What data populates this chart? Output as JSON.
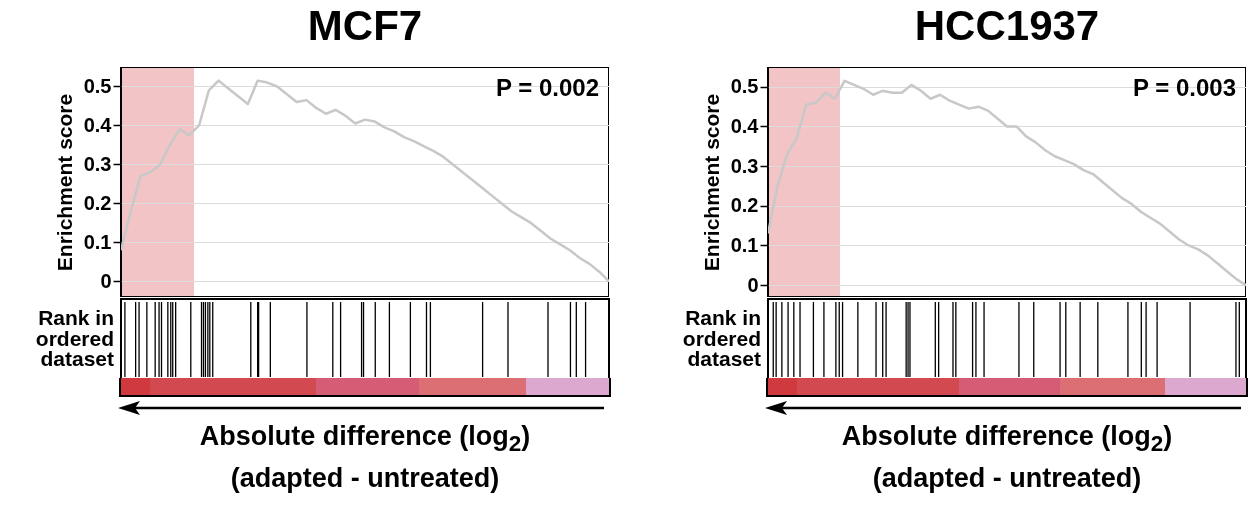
{
  "chart_data": [
    {
      "type": "line",
      "title": "MCF7",
      "ylabel": "Enrichment score",
      "xlabel": "Absolute difference (log$_{2}$)\n(adapted - untreated)",
      "annotations": [
        "P = 0.002",
        "Rank in ordered dataset"
      ],
      "categories": [
        null,
        null,
        null,
        null,
        null,
        null,
        null,
        null,
        null,
        null,
        null,
        null,
        null,
        null,
        null,
        null,
        null,
        null,
        null,
        null,
        null,
        null,
        null,
        null,
        null,
        null,
        null,
        null,
        null,
        null,
        null,
        null,
        null,
        null,
        null,
        null,
        null,
        null,
        null,
        null,
        null,
        null,
        null,
        null,
        null,
        null,
        null,
        null,
        null,
        null,
        null
      ],
      "series": [
        {
          "color": "#c8c8c8",
          "values": [
            0.08,
            0.18,
            0.27,
            0.28,
            0.3,
            0.35,
            0.39,
            0.375,
            0.4,
            0.49,
            0.515,
            0.495,
            0.475,
            0.455,
            0.515,
            0.51,
            0.5,
            0.48,
            0.46,
            0.465,
            0.445,
            0.43,
            0.44,
            0.425,
            0.405,
            0.415,
            0.41,
            0.395,
            0.385,
            0.37,
            0.36,
            0.347,
            0.335,
            0.32,
            0.3,
            0.28,
            0.26,
            0.24,
            0.22,
            0.2,
            0.18,
            0.165,
            0.15,
            0.13,
            0.11,
            0.095,
            0.08,
            0.06,
            0.045,
            0.025,
            0.0
          ]
        }
      ],
      "ylim": [
        -0.04,
        0.55
      ],
      "yticks": [
        0,
        0.1,
        0.2,
        0.3,
        0.4,
        0.5
      ],
      "tick_labels": "y",
      "grid": "y"
    },
    {
      "type": "line",
      "title": "HCC1937",
      "ylabel": "Enrichment score",
      "xlabel": "Absolute difference (log$_{2}$)\n(adapted - untreated)",
      "annotations": [
        "P = 0.003",
        "Rank in ordered dataset"
      ],
      "categories": [
        null,
        null,
        null,
        null,
        null,
        null,
        null,
        null,
        null,
        null,
        null,
        null,
        null,
        null,
        null,
        null,
        null,
        null,
        null,
        null,
        null,
        null,
        null,
        null,
        null,
        null,
        null,
        null,
        null,
        null,
        null,
        null,
        null,
        null,
        null,
        null,
        null,
        null,
        null,
        null,
        null,
        null,
        null,
        null,
        null,
        null,
        null,
        null,
        null,
        null,
        null
      ],
      "series": [
        {
          "color": "#c8c8c8",
          "values": [
            0.13,
            0.25,
            0.33,
            0.37,
            0.455,
            0.46,
            0.485,
            0.47,
            0.515,
            0.505,
            0.495,
            0.48,
            0.49,
            0.485,
            0.485,
            0.505,
            0.49,
            0.47,
            0.48,
            0.465,
            0.455,
            0.445,
            0.45,
            0.44,
            0.42,
            0.4,
            0.4,
            0.375,
            0.36,
            0.34,
            0.325,
            0.315,
            0.305,
            0.29,
            0.28,
            0.26,
            0.24,
            0.22,
            0.205,
            0.185,
            0.17,
            0.155,
            0.135,
            0.115,
            0.1,
            0.09,
            0.075,
            0.055,
            0.035,
            0.015,
            0.0
          ]
        }
      ],
      "ylim": [
        -0.03,
        0.55
      ],
      "yticks": [
        0,
        0.1,
        0.2,
        0.3,
        0.4,
        0.5
      ],
      "tick_labels": "y",
      "grid": "y"
    }
  ]
}
